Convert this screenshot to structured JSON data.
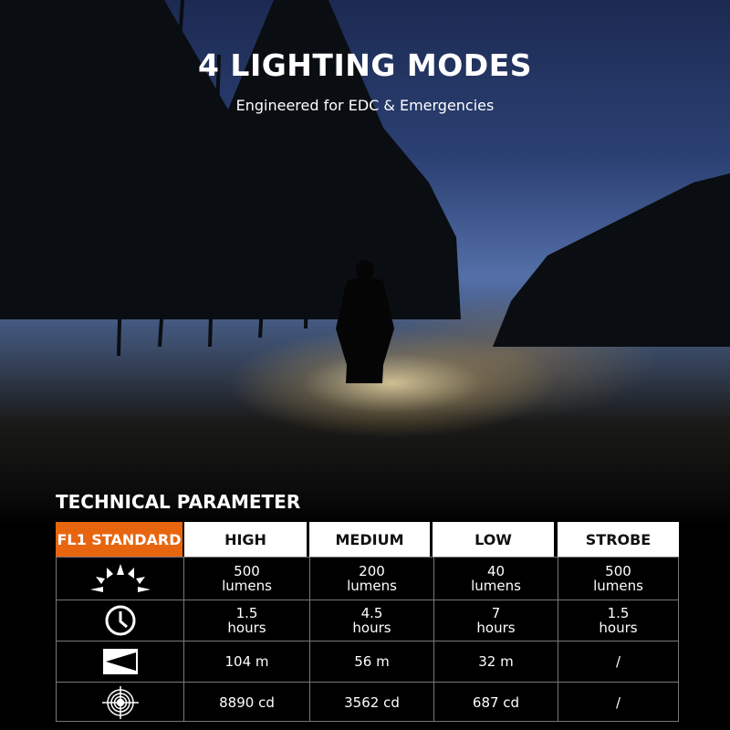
{
  "header": {
    "title": "4 LIGHTING MODES",
    "subtitle": "Engineered for EDC & Emergencies"
  },
  "section_title": "TECHNICAL PARAMETER",
  "colors": {
    "accent": "#e8650f",
    "header_bg": "#ffffff",
    "table_bg": "#000000"
  },
  "table": {
    "corner_label": "FL1 STANDARD",
    "columns": [
      "HIGH",
      "MEDIUM",
      "LOW",
      "STROBE"
    ],
    "rows": [
      {
        "icon": "brightness-sun-icon",
        "values": [
          [
            "500",
            "lumens"
          ],
          [
            "200",
            "lumens"
          ],
          [
            "40",
            "lumens"
          ],
          [
            "500",
            "lumens"
          ]
        ]
      },
      {
        "icon": "clock-icon",
        "values": [
          [
            "1.5",
            "hours"
          ],
          [
            "4.5",
            "hours"
          ],
          [
            "7",
            "hours"
          ],
          [
            "1.5",
            "hours"
          ]
        ]
      },
      {
        "icon": "beam-distance-icon",
        "values": [
          [
            "104 m"
          ],
          [
            "56 m"
          ],
          [
            "32 m"
          ],
          [
            "/"
          ]
        ]
      },
      {
        "icon": "intensity-target-icon",
        "values": [
          [
            "8890 cd"
          ],
          [
            "3562 cd"
          ],
          [
            "687 cd"
          ],
          [
            "/"
          ]
        ]
      }
    ]
  }
}
